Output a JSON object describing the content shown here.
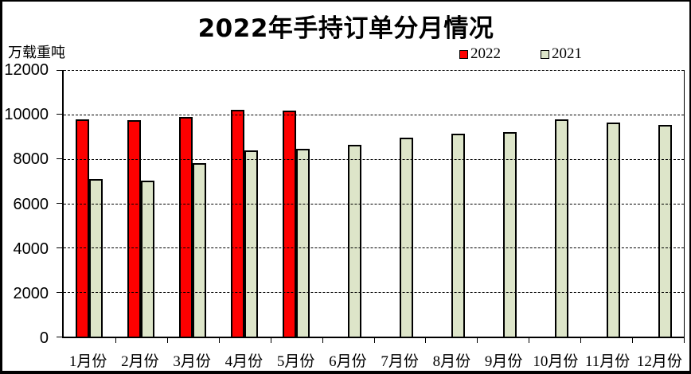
{
  "title": "2022年手持订单分月情况",
  "y_axis_unit": "万载重吨",
  "legend": [
    {
      "label": "2022",
      "color": "#fe0000"
    },
    {
      "label": "2021",
      "color": "#dde5c9"
    }
  ],
  "colors": {
    "bar_2022": "#fe0000",
    "bar_2021": "#dde5c9",
    "bar_border": "#000000",
    "background": "#ffffff"
  },
  "chart_data": {
    "type": "bar",
    "title": "2022年手持订单分月情况",
    "ylabel": "万载重吨",
    "xlabel": "",
    "categories": [
      "1月份",
      "2月份",
      "3月份",
      "4月份",
      "5月份",
      "6月份",
      "7月份",
      "8月份",
      "9月份",
      "10月份",
      "11月份",
      "12月份"
    ],
    "series": [
      {
        "name": "2022",
        "color": "#fe0000",
        "values": [
          9770,
          9740,
          9870,
          10210,
          10170,
          null,
          null,
          null,
          null,
          null,
          null,
          null
        ]
      },
      {
        "name": "2021",
        "color": "#dde5c9",
        "values": [
          7080,
          7010,
          7820,
          8390,
          8470,
          8620,
          8960,
          9130,
          9220,
          9790,
          9620,
          9540
        ]
      }
    ],
    "ylim": [
      0,
      12000
    ],
    "yticks": [
      0,
      2000,
      4000,
      6000,
      8000,
      10000,
      12000
    ],
    "grid": "horizontal-dashed",
    "legend_position": "top-right"
  }
}
